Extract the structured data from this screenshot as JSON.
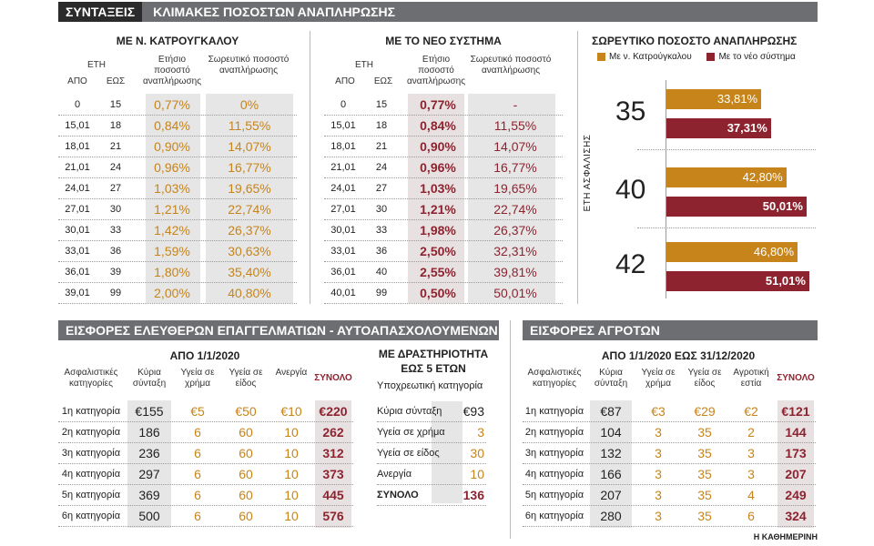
{
  "top_banner": {
    "tag": "ΣΥΝΤΑΞΕΙΣ",
    "title": "ΚΛΙΜΑΚΕΣ ΠΟΣΟΣΤΩΝ ΑΝΑΠΛΗΡΩΣΗΣ"
  },
  "old": {
    "title": "ΜΕ Ν. ΚΑΤΡΟΥΓΚΑΛΟΥ",
    "h_years": "ΕΤΗ",
    "h_from": "ΑΠΟ",
    "h_to": "ΕΩΣ",
    "h_annual": "Ετήσιο ποσοστό αναπλήρωσης",
    "h_cum": "Σωρευτικό ποσοστό αναπλήρωσης",
    "rows": [
      [
        "0",
        "15",
        "0,77%",
        "0%"
      ],
      [
        "15,01",
        "18",
        "0,84%",
        "11,55%"
      ],
      [
        "18,01",
        "21",
        "0,90%",
        "14,07%"
      ],
      [
        "21,01",
        "24",
        "0,96%",
        "16,77%"
      ],
      [
        "24,01",
        "27",
        "1,03%",
        "19,65%"
      ],
      [
        "27,01",
        "30",
        "1,21%",
        "22,74%"
      ],
      [
        "30,01",
        "33",
        "1,42%",
        "26,37%"
      ],
      [
        "33,01",
        "36",
        "1,59%",
        "30,63%"
      ],
      [
        "36,01",
        "39",
        "1,80%",
        "35,40%"
      ],
      [
        "39,01",
        "99",
        "2,00%",
        "40,80%"
      ]
    ]
  },
  "new": {
    "title": "ΜΕ ΤΟ ΝΕΟ ΣΥΣΤΗΜΑ",
    "h_years": "ΕΤΗ",
    "h_from": "ΑΠΟ",
    "h_to": "ΕΩΣ",
    "h_annual": "Ετήσιο ποσοστό αναπλήρωσης",
    "h_cum": "Σωρευτικό ποσοστό αναπλήρωσης",
    "rows": [
      [
        "0",
        "15",
        "0,77%",
        "-"
      ],
      [
        "15,01",
        "18",
        "0,84%",
        "11,55%"
      ],
      [
        "18,01",
        "21",
        "0,90%",
        "14,07%"
      ],
      [
        "21,01",
        "24",
        "0,96%",
        "16,77%"
      ],
      [
        "24,01",
        "27",
        "1,03%",
        "19,65%"
      ],
      [
        "27,01",
        "30",
        "1,21%",
        "22,74%"
      ],
      [
        "30,01",
        "33",
        "1,98%",
        "26,37%"
      ],
      [
        "33,01",
        "36",
        "2,50%",
        "32,31%"
      ],
      [
        "36,01",
        "40",
        "2,55%",
        "39,81%"
      ],
      [
        "40,01",
        "99",
        "0,50%",
        "50,01%"
      ]
    ]
  },
  "chart_data": {
    "type": "bar",
    "title": "ΣΩΡΕΥΤΙΚΟ ΠΟΣΟΣΤΟ ΑΝΑΠΛΗΡΩΣΗΣ",
    "ylabel": "ΕΤΗ ΑΣΦΑΛΙΣΗΣ",
    "xlim": [
      0,
      52
    ],
    "categories": [
      "35",
      "40",
      "42"
    ],
    "series": [
      {
        "name": "Με ν. Κατρούγκαλου",
        "color": "#c7841a",
        "values": [
          33.81,
          42.8,
          46.8
        ],
        "labels": [
          "33,81%",
          "42,80%",
          "46,80%"
        ]
      },
      {
        "name": "Με το νέο σύστημα",
        "color": "#8e2330",
        "values": [
          37.31,
          50.01,
          51.01
        ],
        "labels": [
          "37,31%",
          "50,01%",
          "51,01%"
        ]
      }
    ]
  },
  "free": {
    "banner": "ΕΙΣΦΟΡΕΣ ΕΛΕΥΘΕΡΩΝ ΕΠΑΓΓΕΛΜΑΤΙΩΝ - ΑΥΤΟΑΠΑΣΧΟΛΟΥΜΕΝΩΝ",
    "subtitle": "ΑΠΟ 1/1/2020",
    "headers": [
      "Ασφαλιστικές κατηγορίες",
      "Κύρια σύνταξη",
      "Υγεία σε χρήμα",
      "Υγεία σε είδος",
      "Ανεργία",
      "ΣΥΝΟΛΟ"
    ],
    "rows": [
      [
        "1η κατηγορία",
        "€155",
        "€5",
        "€50",
        "€10",
        "€220"
      ],
      [
        "2η κατηγορία",
        "186",
        "6",
        "60",
        "10",
        "262"
      ],
      [
        "3η κατηγορία",
        "236",
        "6",
        "60",
        "10",
        "312"
      ],
      [
        "4η κατηγορία",
        "297",
        "6",
        "60",
        "10",
        "373"
      ],
      [
        "5η κατηγορία",
        "369",
        "6",
        "60",
        "10",
        "445"
      ],
      [
        "6η κατηγορία",
        "500",
        "6",
        "60",
        "10",
        "576"
      ]
    ]
  },
  "under5": {
    "title1": "ΜΕ ΔΡΑΣΤΗΡΙΟΤΗΤΑ",
    "title2": "ΕΩΣ 5 ΕΤΩΝ",
    "sub": "Υποχρεωτική κατηγορία",
    "rows": [
      [
        "Κύρια σύνταξη",
        "€93"
      ],
      [
        "Υγεία σε χρήμα",
        "3"
      ],
      [
        "Υγεία σε είδος",
        "30"
      ],
      [
        "Ανεργία",
        "10"
      ],
      [
        "ΣΥΝΟΛΟ",
        "136"
      ]
    ]
  },
  "farm": {
    "banner": "ΕΙΣΦΟΡΕΣ ΑΓΡΟΤΩΝ",
    "subtitle": "ΑΠΟ 1/1/2020 ΕΩΣ 31/12/2020",
    "headers": [
      "Ασφαλιστικές κατηγορίες",
      "Κύρια σύνταξη",
      "Υγεία σε χρήμα",
      "Υγεία σε είδος",
      "Αγροτική εστία",
      "ΣΥΝΟΛΟ"
    ],
    "rows": [
      [
        "1η κατηγορία",
        "€87",
        "€3",
        "€29",
        "€2",
        "€121"
      ],
      [
        "2η κατηγορία",
        "104",
        "3",
        "35",
        "2",
        "144"
      ],
      [
        "3η κατηγορία",
        "132",
        "3",
        "35",
        "3",
        "173"
      ],
      [
        "4η κατηγορία",
        "166",
        "3",
        "35",
        "3",
        "207"
      ],
      [
        "5η κατηγορία",
        "207",
        "3",
        "35",
        "4",
        "249"
      ],
      [
        "6η κατηγορία",
        "280",
        "3",
        "35",
        "6",
        "324"
      ]
    ]
  },
  "credit": "Η ΚΑΘΗΜΕΡΙΝΗ"
}
